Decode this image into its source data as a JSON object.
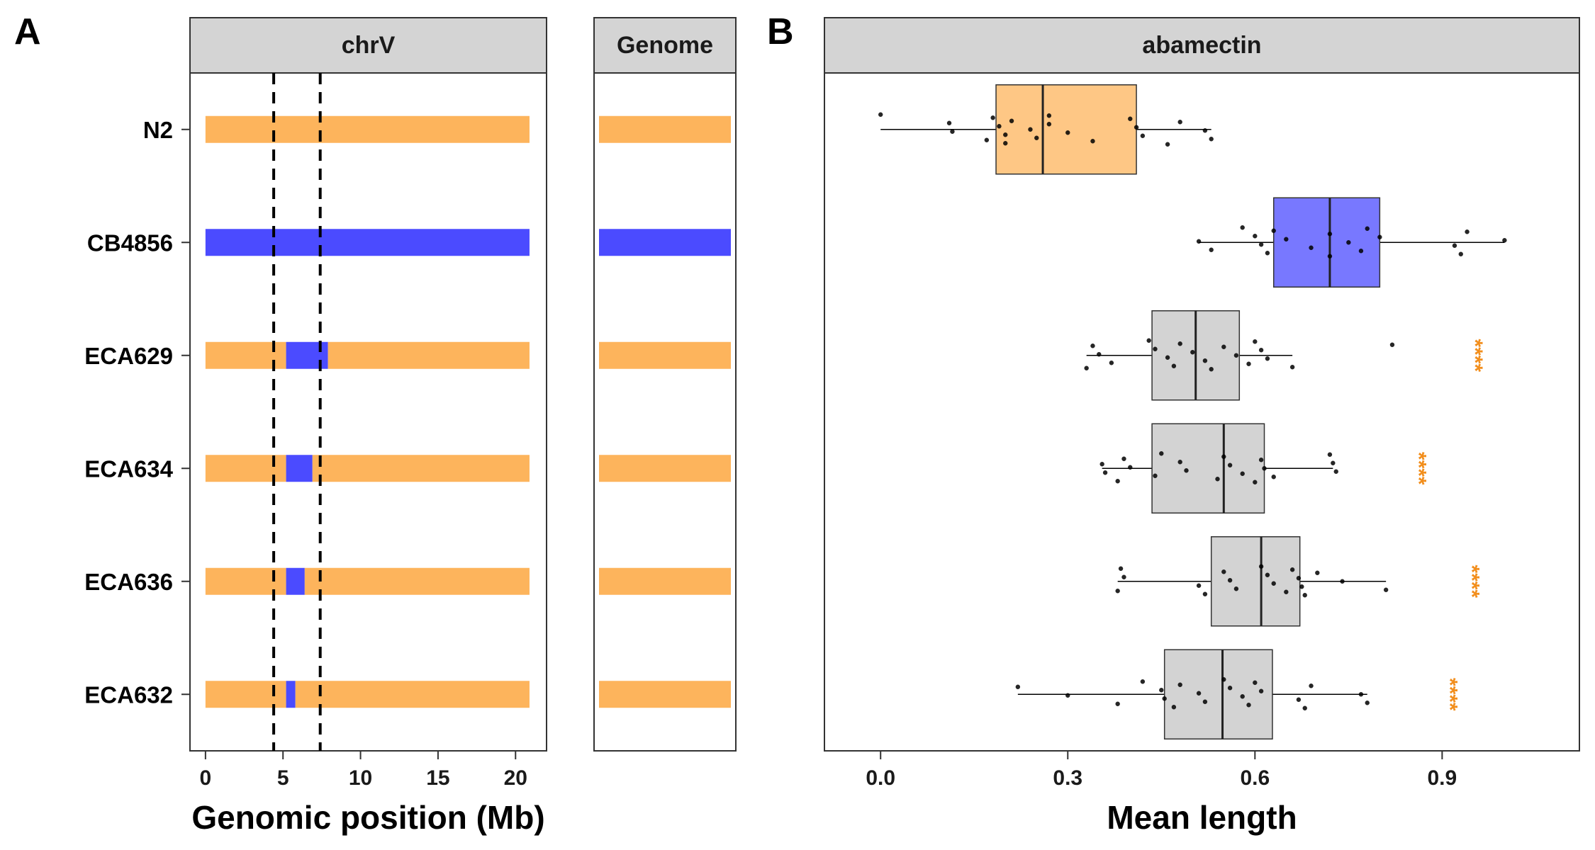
{
  "panels": {
    "a": {
      "letter": "A",
      "strip_left": "chrV",
      "strip_right": "Genome",
      "xlabel": "Genomic position (Mb)"
    },
    "b": {
      "letter": "B",
      "strip": "abamectin",
      "xlabel": "Mean length"
    }
  },
  "colors": {
    "n2": "#FDB45C",
    "cb4856": "#4B4BFF",
    "nil_box": "#D3D3D3",
    "significance": "#F28E1C"
  },
  "chart_data": [
    {
      "type": "bar",
      "subtype": "genotype-intervals",
      "panel": "A",
      "xlabel": "Genomic position (Mb)",
      "xlim": [
        -1,
        22
      ],
      "xticks": [
        0,
        5,
        10,
        15,
        20
      ],
      "chromosome_length": 20.9,
      "qtl_interval_lines": [
        4.4,
        7.4
      ],
      "facets": [
        "chrV",
        "Genome"
      ],
      "strains": [
        "N2",
        "CB4856",
        "ECA629",
        "ECA634",
        "ECA636",
        "ECA632"
      ],
      "chrV_segments": [
        [
          {
            "start": 0,
            "end": 20.9,
            "genotype": "N2"
          }
        ],
        [
          {
            "start": 0,
            "end": 20.9,
            "genotype": "CB4856"
          }
        ],
        [
          {
            "start": 0,
            "end": 5.2,
            "genotype": "N2"
          },
          {
            "start": 5.2,
            "end": 7.9,
            "genotype": "CB4856"
          },
          {
            "start": 7.9,
            "end": 20.9,
            "genotype": "N2"
          }
        ],
        [
          {
            "start": 0,
            "end": 5.2,
            "genotype": "N2"
          },
          {
            "start": 5.2,
            "end": 6.9,
            "genotype": "CB4856"
          },
          {
            "start": 6.9,
            "end": 20.9,
            "genotype": "N2"
          }
        ],
        [
          {
            "start": 0,
            "end": 5.2,
            "genotype": "N2"
          },
          {
            "start": 5.2,
            "end": 6.4,
            "genotype": "CB4856"
          },
          {
            "start": 6.4,
            "end": 20.9,
            "genotype": "N2"
          }
        ],
        [
          {
            "start": 0,
            "end": 5.2,
            "genotype": "N2"
          },
          {
            "start": 5.2,
            "end": 5.8,
            "genotype": "CB4856"
          },
          {
            "start": 5.8,
            "end": 20.9,
            "genotype": "N2"
          }
        ]
      ],
      "genome_background": [
        "N2",
        "CB4856",
        "N2",
        "N2",
        "N2",
        "N2"
      ]
    },
    {
      "type": "boxplot",
      "panel": "B",
      "title": "abamectin",
      "xlabel": "Mean length",
      "xlim": [
        -0.09,
        1.12
      ],
      "xticks": [
        0.0,
        0.3,
        0.6,
        0.9
      ],
      "xtick_labels": [
        "0.0",
        "0.3",
        "0.6",
        "0.9"
      ],
      "series": [
        {
          "name": "N2",
          "q1": 0.185,
          "median": 0.26,
          "q3": 0.41,
          "whisker_low": 0.0,
          "whisker_high": 0.53,
          "points": [
            0.0,
            0.11,
            0.115,
            0.17,
            0.18,
            0.19,
            0.2,
            0.2,
            0.21,
            0.24,
            0.25,
            0.27,
            0.27,
            0.3,
            0.34,
            0.4,
            0.41,
            0.42,
            0.46,
            0.48,
            0.52,
            0.53
          ]
        },
        {
          "name": "CB4856",
          "q1": 0.63,
          "median": 0.72,
          "q3": 0.8,
          "whisker_low": 0.51,
          "whisker_high": 1.0,
          "points": [
            0.51,
            0.53,
            0.58,
            0.6,
            0.61,
            0.62,
            0.63,
            0.65,
            0.69,
            0.72,
            0.72,
            0.75,
            0.77,
            0.78,
            0.8,
            0.92,
            0.93,
            0.94,
            1.0
          ]
        },
        {
          "name": "ECA629",
          "q1": 0.435,
          "median": 0.505,
          "q3": 0.575,
          "whisker_low": 0.33,
          "whisker_high": 0.66,
          "points": [
            0.33,
            0.34,
            0.35,
            0.37,
            0.43,
            0.44,
            0.46,
            0.47,
            0.48,
            0.5,
            0.52,
            0.53,
            0.55,
            0.57,
            0.59,
            0.6,
            0.61,
            0.62,
            0.66,
            0.82
          ]
        },
        {
          "name": "ECA634",
          "q1": 0.435,
          "median": 0.55,
          "q3": 0.615,
          "whisker_low": 0.355,
          "whisker_high": 0.725,
          "points": [
            0.355,
            0.36,
            0.38,
            0.39,
            0.4,
            0.44,
            0.45,
            0.48,
            0.49,
            0.54,
            0.55,
            0.56,
            0.58,
            0.6,
            0.61,
            0.615,
            0.63,
            0.72,
            0.725,
            0.73
          ]
        },
        {
          "name": "ECA636",
          "q1": 0.53,
          "median": 0.61,
          "q3": 0.672,
          "whisker_low": 0.38,
          "whisker_high": 0.81,
          "points": [
            0.38,
            0.385,
            0.39,
            0.51,
            0.52,
            0.55,
            0.56,
            0.57,
            0.61,
            0.62,
            0.63,
            0.65,
            0.66,
            0.67,
            0.675,
            0.68,
            0.7,
            0.74,
            0.81
          ]
        },
        {
          "name": "ECA632",
          "q1": 0.455,
          "median": 0.548,
          "q3": 0.628,
          "whisker_low": 0.22,
          "whisker_high": 0.78,
          "points": [
            0.22,
            0.3,
            0.38,
            0.42,
            0.45,
            0.455,
            0.47,
            0.48,
            0.51,
            0.52,
            0.55,
            0.56,
            0.58,
            0.59,
            0.6,
            0.61,
            0.67,
            0.68,
            0.69,
            0.77,
            0.78
          ]
        }
      ],
      "significance": [
        null,
        null,
        {
          "label": "****",
          "x": 0.93
        },
        {
          "label": "****",
          "x": 0.84
        },
        {
          "label": "****",
          "x": 0.925
        },
        {
          "label": "****",
          "x": 0.89
        }
      ]
    }
  ]
}
